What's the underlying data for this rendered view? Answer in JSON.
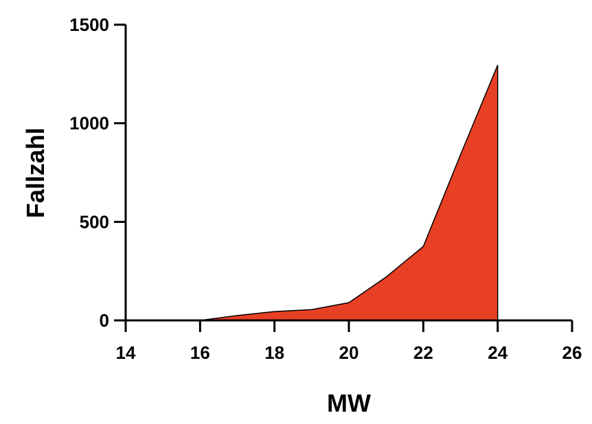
{
  "chart_data": {
    "type": "area",
    "title": "",
    "xlabel": "MW",
    "ylabel": "Fallzahl",
    "xlim": [
      14,
      26
    ],
    "ylim": [
      0,
      1500
    ],
    "xticks": [
      "14",
      "16",
      "18",
      "20",
      "22",
      "24",
      "26"
    ],
    "yticks": [
      "0",
      "500",
      "1000",
      "1500"
    ],
    "grid": false,
    "series": [
      {
        "x": [
          16,
          17,
          18,
          19,
          20,
          21,
          22,
          23,
          24
        ],
        "values": [
          0,
          25,
          45,
          55,
          90,
          220,
          375,
          840,
          1295
        ],
        "color": "#E84024"
      }
    ]
  }
}
